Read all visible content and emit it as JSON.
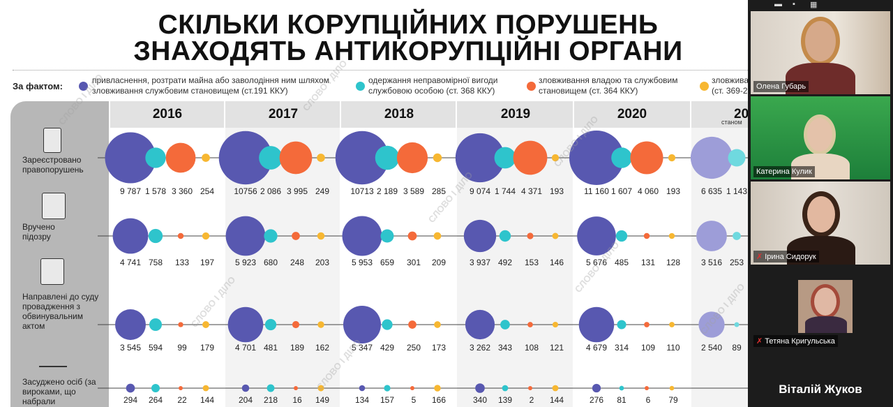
{
  "slide": {
    "title_line1": "СКІЛЬКИ КОРУПЦІЙНИХ ПОРУШЕНЬ",
    "title_line2": "ЗНАХОДЯТЬ АНТИКОРУПЦІЙНІ ОРГАНИ",
    "legend_label": "За фактом:",
    "legend": [
      {
        "text1": "привласнення, розтрати майна або заволодіння ним шляхом",
        "text2": "зловживання службовим становищем (ст.191 ККУ)",
        "color": "#5858b0"
      },
      {
        "text1": "одержання неправомірної вигоди",
        "text2": "службовою особою (ст. 368 ККУ)",
        "color": "#2ec4cc"
      },
      {
        "text1": "зловживання владою та службовим",
        "text2": "становищем (ст. 364 ККУ)",
        "color": "#f46a3a"
      },
      {
        "text1": "зловжива",
        "text2": "(ст. 369-2",
        "color": "#f7b731"
      }
    ],
    "years": [
      "2016",
      "2017",
      "2018",
      "2019",
      "2020",
      "20"
    ],
    "year_sub": "станом",
    "rows": [
      {
        "label": "Зареєстровано правопорушень",
        "icon": "document-icon"
      },
      {
        "label": "Вручено підозру",
        "icon": "id-card-icon"
      },
      {
        "label": "Направлені до суду провадження з обвинувальним актом",
        "icon": "case-file-icon"
      },
      {
        "label": "Засуджено осіб (за вироками, що набрали",
        "icon": "justice-scales-icon"
      }
    ],
    "watermark": "СЛОВО І ДІЛО"
  },
  "chart_data": {
    "type": "scatter",
    "title": "СКІЛЬКИ КОРУПЦІЙНИХ ПОРУШЕНЬ ЗНАХОДЯТЬ АНТИКОРУПЦІЙНІ ОРГАНИ",
    "categories": [
      "2016",
      "2017",
      "2018",
      "2019",
      "2020",
      "20"
    ],
    "series_names": [
      "ст.191 ККУ",
      "ст. 368 ККУ",
      "ст. 364 ККУ",
      "ст. 369-2"
    ],
    "series_colors": [
      "#5858b0",
      "#2ec4cc",
      "#f46a3a",
      "#f7b731"
    ],
    "rows": [
      {
        "name": "Зареєстровано правопорушень",
        "values": [
          [
            9787,
            1578,
            3360,
            254
          ],
          [
            10756,
            2086,
            3995,
            249
          ],
          [
            10713,
            2189,
            3589,
            285
          ],
          [
            9074,
            1744,
            4371,
            193
          ],
          [
            11160,
            1607,
            4060,
            193
          ],
          [
            6635,
            1143,
            null,
            null
          ]
        ],
        "labels": [
          [
            "9 787",
            "1 578",
            "3 360",
            "254"
          ],
          [
            "10756",
            "2 086",
            "3 995",
            "249"
          ],
          [
            "10713",
            "2 189",
            "3 589",
            "285"
          ],
          [
            "9 074",
            "1 744",
            "4 371",
            "193"
          ],
          [
            "11 160",
            "1 607",
            "4 060",
            "193"
          ],
          [
            "6 635",
            "1 143",
            "",
            ""
          ]
        ]
      },
      {
        "name": "Вручено підозру",
        "values": [
          [
            4741,
            758,
            133,
            197
          ],
          [
            5923,
            680,
            248,
            203
          ],
          [
            5953,
            659,
            301,
            209
          ],
          [
            3937,
            492,
            153,
            146
          ],
          [
            5676,
            485,
            131,
            128
          ],
          [
            3516,
            253,
            null,
            null
          ]
        ],
        "labels": [
          [
            "4 741",
            "758",
            "133",
            "197"
          ],
          [
            "5 923",
            "680",
            "248",
            "203"
          ],
          [
            "5 953",
            "659",
            "301",
            "209"
          ],
          [
            "3 937",
            "492",
            "153",
            "146"
          ],
          [
            "5 676",
            "485",
            "131",
            "128"
          ],
          [
            "3 516",
            "253",
            "",
            ""
          ]
        ]
      },
      {
        "name": "Направлені до суду провадження з обвинувальним актом",
        "values": [
          [
            3545,
            594,
            99,
            179
          ],
          [
            4701,
            481,
            189,
            162
          ],
          [
            5347,
            429,
            250,
            173
          ],
          [
            3262,
            343,
            108,
            121
          ],
          [
            4679,
            314,
            109,
            110
          ],
          [
            2540,
            89,
            null,
            null
          ]
        ],
        "labels": [
          [
            "3 545",
            "594",
            "99",
            "179"
          ],
          [
            "4 701",
            "481",
            "189",
            "162"
          ],
          [
            "5 347",
            "429",
            "250",
            "173"
          ],
          [
            "3 262",
            "343",
            "108",
            "121"
          ],
          [
            "4 679",
            "314",
            "109",
            "110"
          ],
          [
            "2 540",
            "89",
            "",
            ""
          ]
        ]
      },
      {
        "name": "Засуджено осіб",
        "values": [
          [
            294,
            264,
            22,
            144
          ],
          [
            204,
            218,
            16,
            149
          ],
          [
            134,
            157,
            5,
            166
          ],
          [
            340,
            139,
            2,
            144
          ],
          [
            276,
            81,
            6,
            79
          ],
          [
            null,
            null,
            null,
            null
          ]
        ],
        "labels": [
          [
            "294",
            "264",
            "22",
            "144"
          ],
          [
            "204",
            "218",
            "16",
            "149"
          ],
          [
            "134",
            "157",
            "5",
            "166"
          ],
          [
            "340",
            "139",
            "2",
            "144"
          ],
          [
            "276",
            "81",
            "6",
            "79"
          ],
          [
            "",
            "",
            "",
            ""
          ]
        ]
      }
    ]
  },
  "participants": [
    {
      "name": "Олена Губарь",
      "muted": false
    },
    {
      "name": "Катерина Кулик",
      "muted": false
    },
    {
      "name": "Ірина Сидорук",
      "muted": true
    },
    {
      "name": "Тетяна Кригульська",
      "muted": true
    }
  ],
  "active_speaker": "Віталій Жуков",
  "icons": {
    "mic_off": "✗",
    "minimize": "▬",
    "grid": "▦",
    "pin": "📌"
  }
}
